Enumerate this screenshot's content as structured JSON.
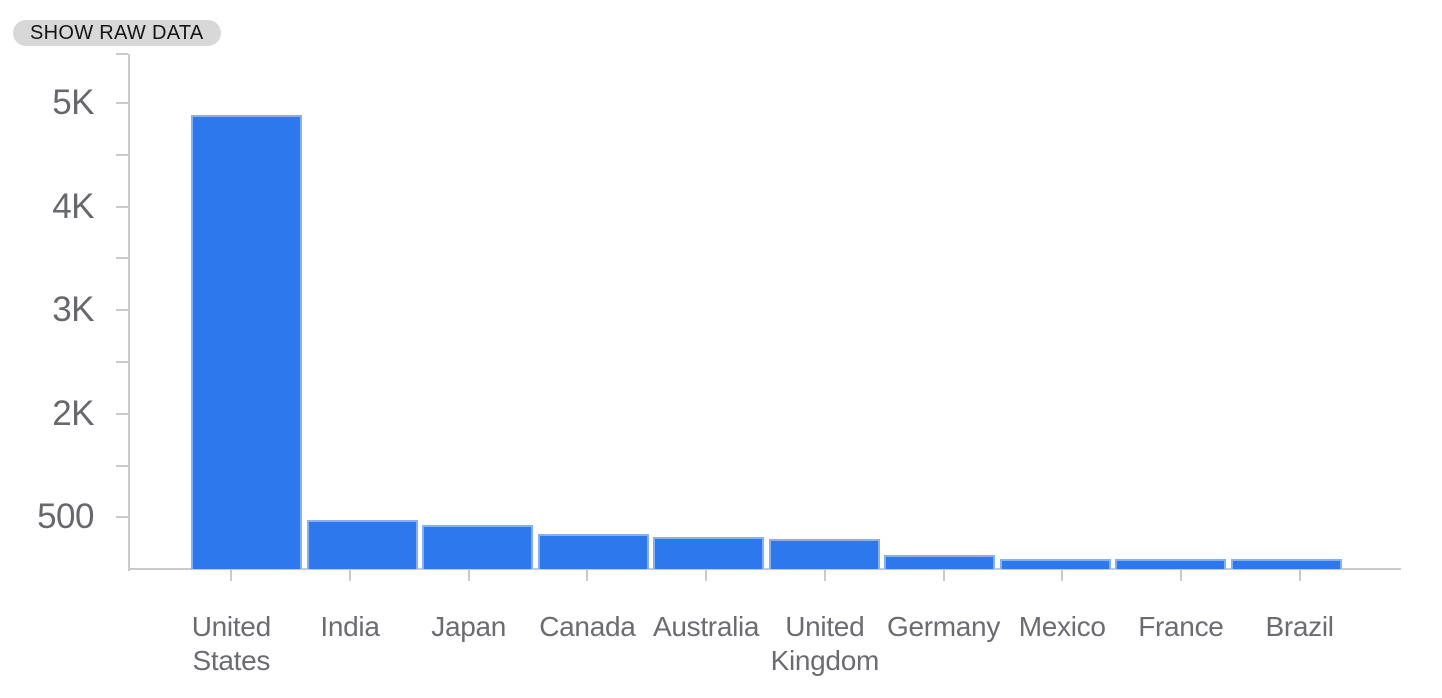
{
  "toolbar": {
    "show_raw_data_label": "SHOW RAW DATA"
  },
  "chart_data": {
    "type": "bar",
    "title": "",
    "xlabel": "",
    "ylabel": "",
    "categories": [
      "United States",
      "India",
      "Japan",
      "Canada",
      "Australia",
      "United Kingdom",
      "Germany",
      "Mexico",
      "France",
      "Brazil"
    ],
    "category_label_lines": [
      [
        "United",
        "States"
      ],
      [
        "India"
      ],
      [
        "Japan"
      ],
      [
        "Canada"
      ],
      [
        "Australia"
      ],
      [
        "United",
        "Kingdom"
      ],
      [
        "Germany"
      ],
      [
        "Mexico"
      ],
      [
        "France"
      ],
      [
        "Brazil"
      ]
    ],
    "values": [
      4885,
      475,
      430,
      340,
      310,
      290,
      130,
      95,
      95,
      95
    ],
    "y_axis": {
      "tick_labels": [
        "5K",
        "4K",
        "3K",
        "2K",
        "500"
      ],
      "tick_values": [
        5000,
        4000,
        3000,
        2000,
        500
      ],
      "minor_ticks": true,
      "range_bottom": 0
    },
    "legend_position": "none",
    "grid": "off",
    "bar_color": "#2e78ee",
    "axis_color": "#c9cacc",
    "y_label_color": "#66686d",
    "x_label_color": "#6a6c71"
  }
}
